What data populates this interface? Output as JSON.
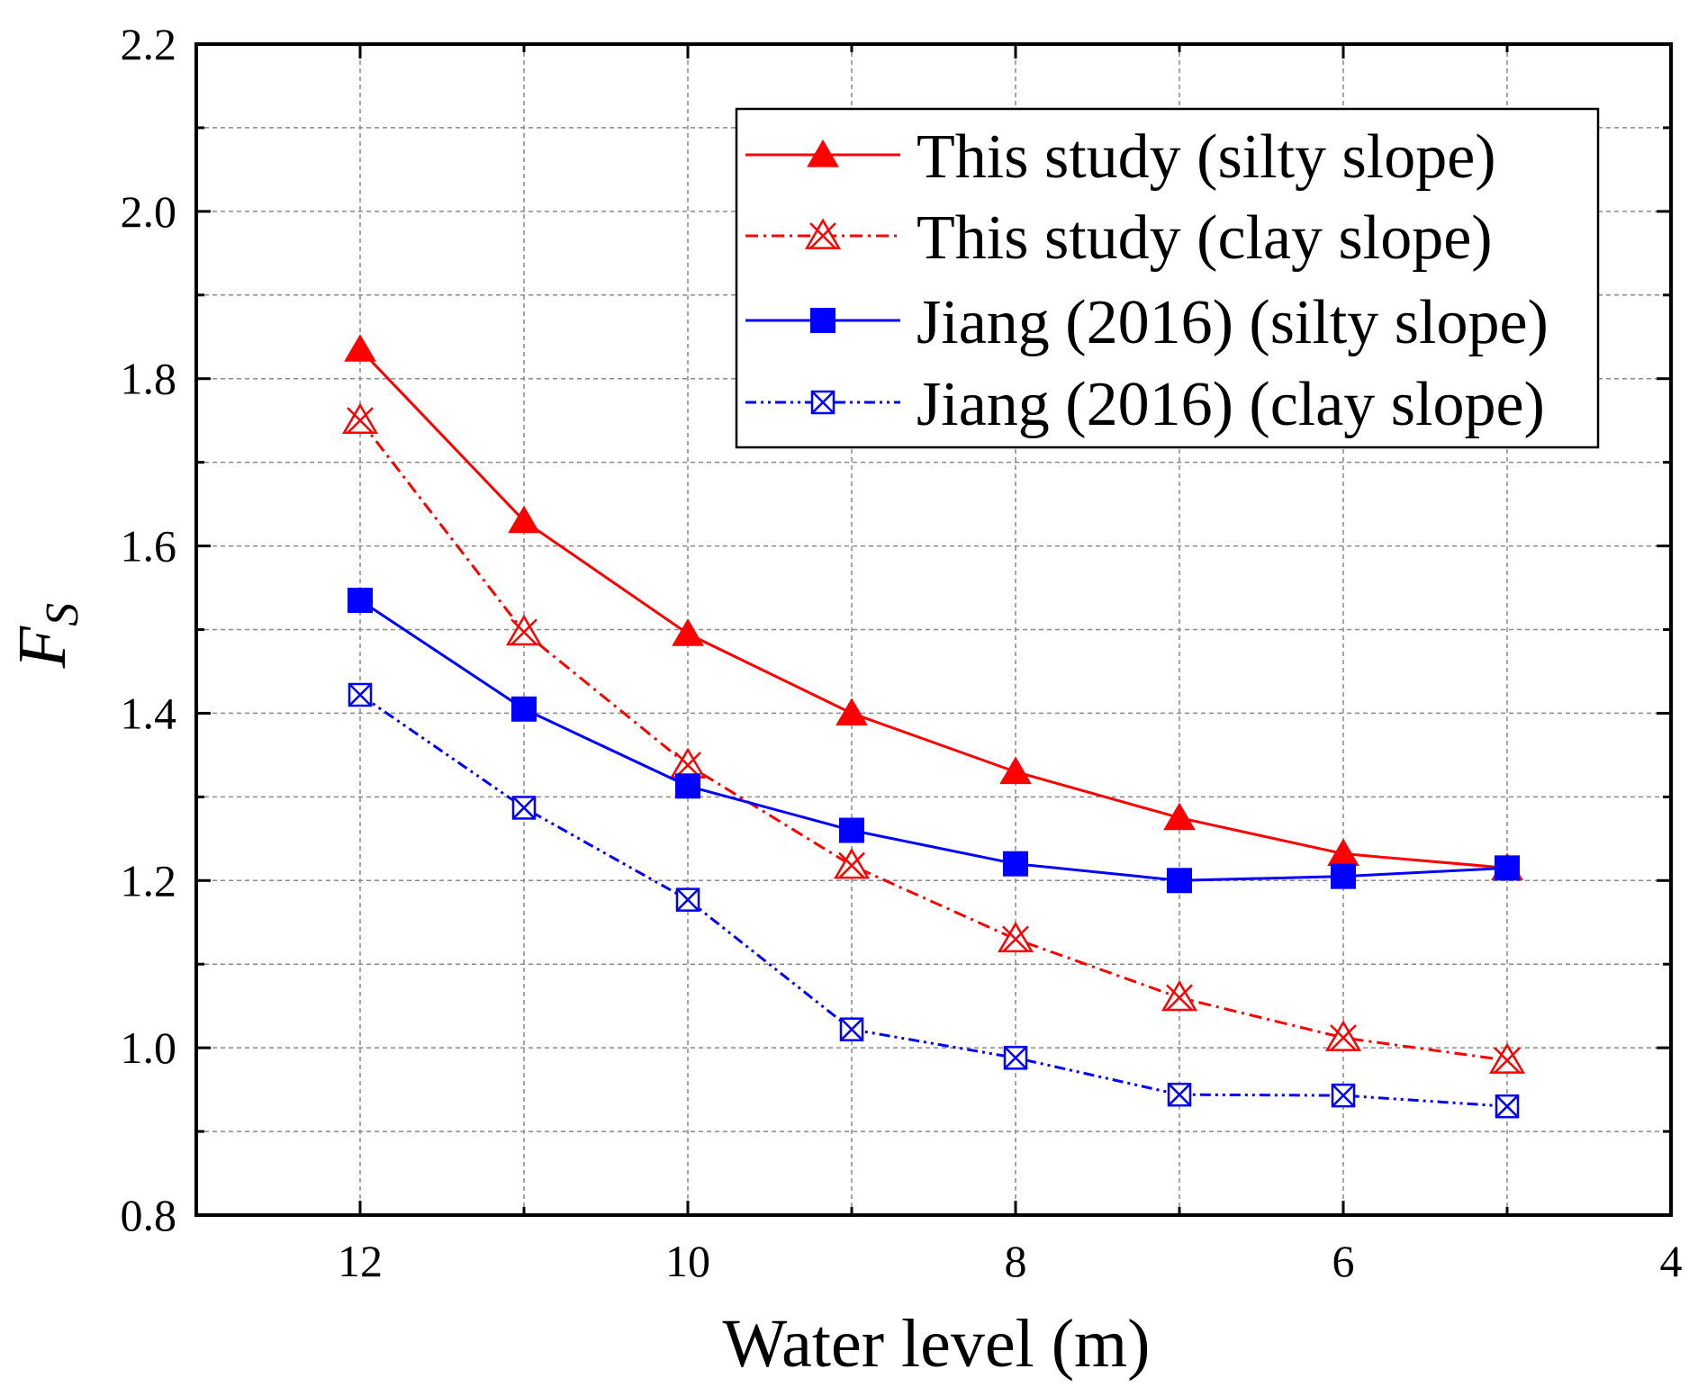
{
  "chart_data": {
    "type": "line",
    "title": "",
    "xlabel": "Water level (m)",
    "ylabel": "F",
    "ylabel_subscript": "S",
    "xlim": [
      13,
      4
    ],
    "ylim": [
      0.8,
      2.2
    ],
    "xticks": [
      12,
      10,
      8,
      6,
      4
    ],
    "yticks": [
      0.8,
      1.0,
      1.2,
      1.4,
      1.6,
      1.8,
      2.0,
      2.2
    ],
    "grid": true,
    "legend_position": "top-right",
    "x": [
      12,
      11,
      10,
      9,
      8,
      7,
      6,
      5
    ],
    "series": [
      {
        "name": "This study (silty slope)",
        "color": "#ff0000",
        "marker": "triangle",
        "line": "solid",
        "values": [
          1.835,
          1.63,
          1.495,
          1.4,
          1.33,
          1.275,
          1.232,
          1.215
        ]
      },
      {
        "name": "This study (clay slope)",
        "color": "#ff0000",
        "marker": "x-triangle",
        "line": "dashdot",
        "values": [
          1.75,
          1.497,
          1.338,
          1.218,
          1.13,
          1.06,
          1.012,
          0.985
        ]
      },
      {
        "name": "Jiang (2016) (silty slope)",
        "color": "#0000ff",
        "marker": "square",
        "line": "solid",
        "values": [
          1.535,
          1.405,
          1.313,
          1.26,
          1.22,
          1.2,
          1.205,
          1.215
        ]
      },
      {
        "name": "Jiang (2016) (clay slope)",
        "color": "#0000ff",
        "marker": "x-square",
        "line": "dashdotdot",
        "values": [
          1.422,
          1.287,
          1.177,
          1.022,
          0.988,
          0.944,
          0.943,
          0.93
        ]
      }
    ]
  }
}
